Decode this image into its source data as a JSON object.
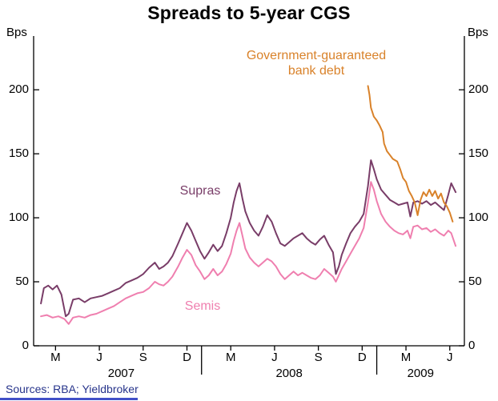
{
  "chart_data": {
    "type": "line",
    "title": "Spreads to 5-year CGS",
    "ylabel": "Bps",
    "ylabel_right": "Bps",
    "ylim": [
      0,
      242
    ],
    "yticks": [
      0,
      50,
      100,
      150,
      200
    ],
    "x_unit": "months since Jan 2007",
    "xlim": [
      0.5,
      30
    ],
    "xticks": [
      {
        "x": 2,
        "label": "M"
      },
      {
        "x": 5,
        "label": "J"
      },
      {
        "x": 8,
        "label": "S"
      },
      {
        "x": 11,
        "label": "D"
      },
      {
        "x": 14,
        "label": "M"
      },
      {
        "x": 17,
        "label": "J"
      },
      {
        "x": 20,
        "label": "S"
      },
      {
        "x": 23,
        "label": "D"
      },
      {
        "x": 26,
        "label": "M"
      },
      {
        "x": 29,
        "label": "J"
      }
    ],
    "year_labels": [
      {
        "x": 6.5,
        "label": "2007"
      },
      {
        "x": 18,
        "label": "2008"
      },
      {
        "x": 27,
        "label": "2009"
      }
    ],
    "year_separators": [
      12,
      24
    ],
    "grid": false,
    "legend_position": "annotated-on-chart",
    "series": [
      {
        "name": "Supras",
        "color": "#793d68",
        "points": [
          [
            1.0,
            33
          ],
          [
            1.2,
            45
          ],
          [
            1.5,
            47
          ],
          [
            1.8,
            44
          ],
          [
            2.1,
            47
          ],
          [
            2.4,
            40
          ],
          [
            2.7,
            23
          ],
          [
            2.9,
            25
          ],
          [
            3.2,
            36
          ],
          [
            3.6,
            37
          ],
          [
            4.0,
            34
          ],
          [
            4.4,
            37
          ],
          [
            4.8,
            38
          ],
          [
            5.2,
            39
          ],
          [
            5.6,
            41
          ],
          [
            6.0,
            43
          ],
          [
            6.4,
            45
          ],
          [
            6.8,
            49
          ],
          [
            7.2,
            51
          ],
          [
            7.6,
            53
          ],
          [
            8.0,
            56
          ],
          [
            8.4,
            61
          ],
          [
            8.8,
            65
          ],
          [
            9.1,
            60
          ],
          [
            9.4,
            62
          ],
          [
            9.7,
            65
          ],
          [
            10.0,
            70
          ],
          [
            10.4,
            80
          ],
          [
            10.7,
            88
          ],
          [
            11.0,
            96
          ],
          [
            11.3,
            90
          ],
          [
            11.6,
            82
          ],
          [
            11.9,
            74
          ],
          [
            12.2,
            68
          ],
          [
            12.5,
            73
          ],
          [
            12.8,
            79
          ],
          [
            13.1,
            74
          ],
          [
            13.4,
            78
          ],
          [
            13.7,
            88
          ],
          [
            14.0,
            100
          ],
          [
            14.2,
            112
          ],
          [
            14.4,
            121
          ],
          [
            14.6,
            127
          ],
          [
            14.8,
            115
          ],
          [
            15.0,
            105
          ],
          [
            15.3,
            96
          ],
          [
            15.6,
            90
          ],
          [
            15.9,
            86
          ],
          [
            16.2,
            93
          ],
          [
            16.5,
            102
          ],
          [
            16.8,
            97
          ],
          [
            17.1,
            88
          ],
          [
            17.4,
            80
          ],
          [
            17.7,
            78
          ],
          [
            18.0,
            81
          ],
          [
            18.3,
            84
          ],
          [
            18.6,
            86
          ],
          [
            18.9,
            88
          ],
          [
            19.2,
            84
          ],
          [
            19.5,
            81
          ],
          [
            19.8,
            79
          ],
          [
            20.1,
            83
          ],
          [
            20.4,
            86
          ],
          [
            20.7,
            79
          ],
          [
            21.0,
            73
          ],
          [
            21.2,
            56
          ],
          [
            21.4,
            62
          ],
          [
            21.6,
            71
          ],
          [
            21.9,
            80
          ],
          [
            22.2,
            88
          ],
          [
            22.5,
            93
          ],
          [
            22.8,
            97
          ],
          [
            23.1,
            103
          ],
          [
            23.4,
            125
          ],
          [
            23.6,
            145
          ],
          [
            23.8,
            138
          ],
          [
            24.0,
            130
          ],
          [
            24.3,
            122
          ],
          [
            24.6,
            118
          ],
          [
            24.9,
            114
          ],
          [
            25.2,
            112
          ],
          [
            25.5,
            110
          ],
          [
            25.8,
            111
          ],
          [
            26.1,
            112
          ],
          [
            26.3,
            101
          ],
          [
            26.5,
            112
          ],
          [
            26.8,
            113
          ],
          [
            27.1,
            111
          ],
          [
            27.4,
            113
          ],
          [
            27.7,
            110
          ],
          [
            28.0,
            112
          ],
          [
            28.3,
            109
          ],
          [
            28.6,
            106
          ],
          [
            28.9,
            118
          ],
          [
            29.1,
            127
          ],
          [
            29.4,
            120
          ]
        ]
      },
      {
        "name": "Semis",
        "color": "#ef7faf",
        "points": [
          [
            1.0,
            23
          ],
          [
            1.4,
            24
          ],
          [
            1.8,
            22
          ],
          [
            2.2,
            23
          ],
          [
            2.6,
            21
          ],
          [
            2.9,
            17
          ],
          [
            3.2,
            22
          ],
          [
            3.6,
            23
          ],
          [
            4.0,
            22
          ],
          [
            4.4,
            24
          ],
          [
            4.8,
            25
          ],
          [
            5.2,
            27
          ],
          [
            5.6,
            29
          ],
          [
            6.0,
            31
          ],
          [
            6.4,
            34
          ],
          [
            6.8,
            37
          ],
          [
            7.2,
            39
          ],
          [
            7.6,
            41
          ],
          [
            8.0,
            42
          ],
          [
            8.4,
            45
          ],
          [
            8.8,
            50
          ],
          [
            9.1,
            48
          ],
          [
            9.4,
            47
          ],
          [
            9.7,
            50
          ],
          [
            10.0,
            54
          ],
          [
            10.4,
            62
          ],
          [
            10.7,
            69
          ],
          [
            11.0,
            75
          ],
          [
            11.3,
            71
          ],
          [
            11.6,
            63
          ],
          [
            11.9,
            58
          ],
          [
            12.2,
            52
          ],
          [
            12.5,
            55
          ],
          [
            12.8,
            60
          ],
          [
            13.1,
            55
          ],
          [
            13.4,
            58
          ],
          [
            13.7,
            64
          ],
          [
            14.0,
            72
          ],
          [
            14.2,
            82
          ],
          [
            14.4,
            90
          ],
          [
            14.6,
            96
          ],
          [
            14.8,
            86
          ],
          [
            15.0,
            76
          ],
          [
            15.3,
            69
          ],
          [
            15.6,
            65
          ],
          [
            15.9,
            62
          ],
          [
            16.2,
            65
          ],
          [
            16.5,
            68
          ],
          [
            16.8,
            66
          ],
          [
            17.1,
            62
          ],
          [
            17.4,
            56
          ],
          [
            17.7,
            52
          ],
          [
            18.0,
            55
          ],
          [
            18.3,
            58
          ],
          [
            18.6,
            55
          ],
          [
            18.9,
            57
          ],
          [
            19.2,
            55
          ],
          [
            19.5,
            53
          ],
          [
            19.8,
            52
          ],
          [
            20.1,
            55
          ],
          [
            20.4,
            60
          ],
          [
            20.7,
            57
          ],
          [
            21.0,
            54
          ],
          [
            21.2,
            50
          ],
          [
            21.4,
            55
          ],
          [
            21.6,
            60
          ],
          [
            21.9,
            66
          ],
          [
            22.2,
            72
          ],
          [
            22.5,
            78
          ],
          [
            22.8,
            84
          ],
          [
            23.1,
            92
          ],
          [
            23.4,
            112
          ],
          [
            23.6,
            128
          ],
          [
            23.8,
            122
          ],
          [
            24.0,
            113
          ],
          [
            24.3,
            103
          ],
          [
            24.6,
            97
          ],
          [
            24.9,
            93
          ],
          [
            25.2,
            90
          ],
          [
            25.5,
            88
          ],
          [
            25.8,
            87
          ],
          [
            26.1,
            90
          ],
          [
            26.3,
            84
          ],
          [
            26.5,
            93
          ],
          [
            26.8,
            94
          ],
          [
            27.1,
            91
          ],
          [
            27.4,
            92
          ],
          [
            27.7,
            89
          ],
          [
            28.0,
            91
          ],
          [
            28.3,
            88
          ],
          [
            28.6,
            86
          ],
          [
            28.9,
            90
          ],
          [
            29.1,
            88
          ],
          [
            29.4,
            78
          ]
        ]
      },
      {
        "name": "Government-guaranteed bank debt",
        "color": "#d9822a",
        "points": [
          [
            23.4,
            203
          ],
          [
            23.5,
            196
          ],
          [
            23.6,
            186
          ],
          [
            23.8,
            179
          ],
          [
            24.0,
            176
          ],
          [
            24.2,
            172
          ],
          [
            24.4,
            167
          ],
          [
            24.5,
            158
          ],
          [
            24.7,
            152
          ],
          [
            24.9,
            149
          ],
          [
            25.1,
            146
          ],
          [
            25.4,
            144
          ],
          [
            25.6,
            138
          ],
          [
            25.8,
            131
          ],
          [
            26.0,
            128
          ],
          [
            26.2,
            121
          ],
          [
            26.4,
            117
          ],
          [
            26.6,
            112
          ],
          [
            26.8,
            102
          ],
          [
            27.0,
            114
          ],
          [
            27.2,
            120
          ],
          [
            27.4,
            117
          ],
          [
            27.6,
            122
          ],
          [
            27.8,
            117
          ],
          [
            28.0,
            121
          ],
          [
            28.2,
            115
          ],
          [
            28.4,
            119
          ],
          [
            28.6,
            112
          ],
          [
            28.8,
            109
          ],
          [
            29.0,
            104
          ],
          [
            29.2,
            97
          ]
        ]
      }
    ],
    "annotations": [
      {
        "text": "Government-guaranteed"
      },
      {
        "text": "bank debt"
      },
      {
        "text": "Supras"
      },
      {
        "text": "Semis"
      }
    ]
  },
  "footer": {
    "sources": "Sources: RBA; Yieldbroker"
  }
}
